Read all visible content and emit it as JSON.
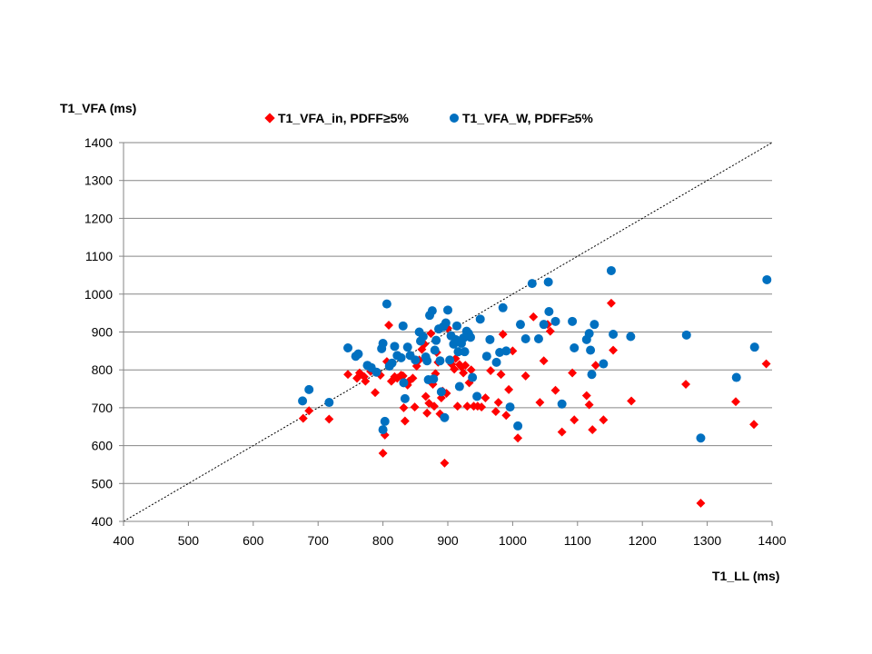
{
  "chart_data": {
    "type": "scatter",
    "xlabel": "T1_LL (ms)",
    "ylabel": "T1_VFA (ms)",
    "xlim": [
      400,
      1400
    ],
    "ylim": [
      400,
      1400
    ],
    "x_ticks": [
      "400",
      "500",
      "600",
      "700",
      "800",
      "900",
      "1000",
      "1100",
      "1200",
      "1300",
      "1400"
    ],
    "y_ticks": [
      "400",
      "500",
      "600",
      "700",
      "800",
      "900",
      "1000",
      "1100",
      "1200",
      "1300",
      "1400"
    ],
    "grid": "horizontal",
    "legend_position": "top",
    "identity_line": {
      "style": "dashed",
      "from": [
        400,
        400
      ],
      "to": [
        1400,
        1400
      ]
    },
    "series": [
      {
        "name": "T1_VFA_in, PDFF≥5%",
        "marker": "diamond",
        "color": "#ff0000",
        "points": [
          [
            677,
            672
          ],
          [
            686,
            692
          ],
          [
            717,
            670
          ],
          [
            746,
            788
          ],
          [
            760,
            778
          ],
          [
            764,
            792
          ],
          [
            771,
            782
          ],
          [
            773,
            770
          ],
          [
            781,
            796
          ],
          [
            788,
            740
          ],
          [
            796,
            786
          ],
          [
            800,
            580
          ],
          [
            803,
            628
          ],
          [
            806,
            822
          ],
          [
            809,
            918
          ],
          [
            813,
            770
          ],
          [
            818,
            782
          ],
          [
            822,
            778
          ],
          [
            828,
            786
          ],
          [
            831,
            784
          ],
          [
            832,
            700
          ],
          [
            834,
            665
          ],
          [
            838,
            760
          ],
          [
            840,
            770
          ],
          [
            846,
            778
          ],
          [
            849,
            702
          ],
          [
            852,
            810
          ],
          [
            856,
            826
          ],
          [
            860,
            854
          ],
          [
            864,
            868
          ],
          [
            866,
            730
          ],
          [
            868,
            686
          ],
          [
            871,
            712
          ],
          [
            874,
            896
          ],
          [
            877,
            762
          ],
          [
            879,
            704
          ],
          [
            881,
            790
          ],
          [
            883,
            846
          ],
          [
            885,
            820
          ],
          [
            888,
            684
          ],
          [
            890,
            726
          ],
          [
            892,
            744
          ],
          [
            895,
            554
          ],
          [
            898,
            738
          ],
          [
            900,
            910
          ],
          [
            903,
            822
          ],
          [
            906,
            815
          ],
          [
            910,
            802
          ],
          [
            912,
            830
          ],
          [
            915,
            704
          ],
          [
            918,
            814
          ],
          [
            921,
            808
          ],
          [
            924,
            792
          ],
          [
            927,
            812
          ],
          [
            930,
            704
          ],
          [
            933,
            766
          ],
          [
            936,
            800
          ],
          [
            940,
            704
          ],
          [
            946,
            704
          ],
          [
            952,
            702
          ],
          [
            958,
            726
          ],
          [
            966,
            798
          ],
          [
            974,
            690
          ],
          [
            978,
            714
          ],
          [
            982,
            788
          ],
          [
            985,
            894
          ],
          [
            990,
            680
          ],
          [
            994,
            748
          ],
          [
            1000,
            850
          ],
          [
            1008,
            620
          ],
          [
            1020,
            784
          ],
          [
            1032,
            940
          ],
          [
            1042,
            714
          ],
          [
            1048,
            824
          ],
          [
            1054,
            920
          ],
          [
            1058,
            902
          ],
          [
            1066,
            746
          ],
          [
            1076,
            636
          ],
          [
            1092,
            792
          ],
          [
            1095,
            668
          ],
          [
            1114,
            732
          ],
          [
            1118,
            708
          ],
          [
            1123,
            642
          ],
          [
            1128,
            812
          ],
          [
            1140,
            668
          ],
          [
            1152,
            976
          ],
          [
            1155,
            852
          ],
          [
            1183,
            718
          ],
          [
            1267,
            762
          ],
          [
            1290,
            448
          ],
          [
            1344,
            716
          ],
          [
            1372,
            656
          ],
          [
            1391,
            816
          ]
        ]
      },
      {
        "name": "T1_VFA_W, PDFF≥5%",
        "marker": "circle",
        "color": "#0070c0",
        "points": [
          [
            676,
            718
          ],
          [
            686,
            748
          ],
          [
            717,
            714
          ],
          [
            746,
            858
          ],
          [
            758,
            836
          ],
          [
            762,
            842
          ],
          [
            776,
            812
          ],
          [
            782,
            806
          ],
          [
            790,
            794
          ],
          [
            798,
            856
          ],
          [
            800,
            870
          ],
          [
            800,
            642
          ],
          [
            803,
            664
          ],
          [
            806,
            974
          ],
          [
            810,
            810
          ],
          [
            814,
            818
          ],
          [
            818,
            862
          ],
          [
            822,
            838
          ],
          [
            828,
            832
          ],
          [
            831,
            916
          ],
          [
            832,
            766
          ],
          [
            834,
            724
          ],
          [
            838,
            860
          ],
          [
            842,
            838
          ],
          [
            850,
            826
          ],
          [
            856,
            900
          ],
          [
            858,
            876
          ],
          [
            862,
            888
          ],
          [
            866,
            834
          ],
          [
            868,
            824
          ],
          [
            870,
            774
          ],
          [
            872,
            944
          ],
          [
            876,
            956
          ],
          [
            878,
            776
          ],
          [
            880,
            852
          ],
          [
            882,
            878
          ],
          [
            886,
            908
          ],
          [
            888,
            824
          ],
          [
            890,
            742
          ],
          [
            893,
            914
          ],
          [
            895,
            674
          ],
          [
            897,
            924
          ],
          [
            900,
            958
          ],
          [
            903,
            826
          ],
          [
            905,
            890
          ],
          [
            909,
            868
          ],
          [
            912,
            880
          ],
          [
            914,
            916
          ],
          [
            916,
            848
          ],
          [
            918,
            756
          ],
          [
            921,
            870
          ],
          [
            924,
            884
          ],
          [
            926,
            848
          ],
          [
            929,
            902
          ],
          [
            932,
            896
          ],
          [
            935,
            886
          ],
          [
            938,
            780
          ],
          [
            945,
            730
          ],
          [
            950,
            934
          ],
          [
            960,
            836
          ],
          [
            965,
            880
          ],
          [
            975,
            820
          ],
          [
            980,
            846
          ],
          [
            985,
            964
          ],
          [
            990,
            850
          ],
          [
            996,
            702
          ],
          [
            1008,
            652
          ],
          [
            1012,
            920
          ],
          [
            1020,
            882
          ],
          [
            1030,
            1028
          ],
          [
            1040,
            882
          ],
          [
            1048,
            920
          ],
          [
            1055,
            1032
          ],
          [
            1056,
            954
          ],
          [
            1066,
            928
          ],
          [
            1076,
            710
          ],
          [
            1092,
            928
          ],
          [
            1095,
            858
          ],
          [
            1114,
            880
          ],
          [
            1118,
            896
          ],
          [
            1120,
            852
          ],
          [
            1122,
            788
          ],
          [
            1126,
            920
          ],
          [
            1140,
            816
          ],
          [
            1152,
            1062
          ],
          [
            1155,
            894
          ],
          [
            1182,
            888
          ],
          [
            1268,
            892
          ],
          [
            1290,
            620
          ],
          [
            1345,
            780
          ],
          [
            1373,
            860
          ],
          [
            1392,
            1038
          ]
        ]
      }
    ]
  }
}
